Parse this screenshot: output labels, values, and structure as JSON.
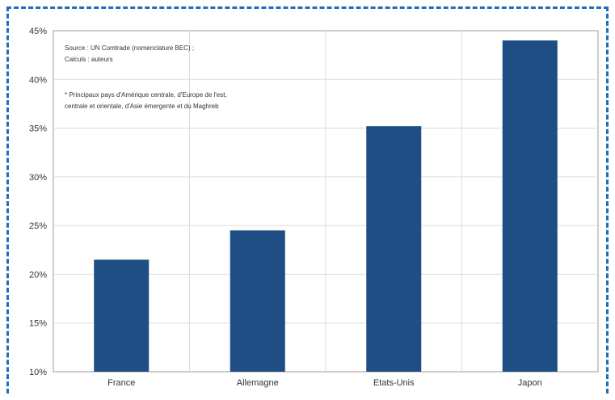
{
  "chart_data": {
    "type": "bar",
    "categories": [
      "France",
      "Allemagne",
      "Etats-Unis",
      "Japon"
    ],
    "values": [
      21.5,
      24.5,
      35.2,
      44.0
    ],
    "ylim": [
      10,
      45
    ],
    "yticks": [
      10,
      15,
      20,
      25,
      30,
      35,
      40,
      45
    ],
    "ytick_labels": [
      "10%",
      "15%",
      "20%",
      "25%",
      "30%",
      "35%",
      "40%",
      "45%"
    ],
    "grid": true,
    "bar_color": "#1f4e85",
    "annotations": {
      "source_line1": "Source : UN Comtrade (nomenclature BEC) ;",
      "source_line2": "Calculs : auteurs",
      "note_line1": "* Principaux pays d'Amérique centrale, d'Europe de l'est,",
      "note_line2": "centrale et orientale, d'Asie émergente  et du Maghreb"
    }
  },
  "frame_color": "#1f6fb8"
}
